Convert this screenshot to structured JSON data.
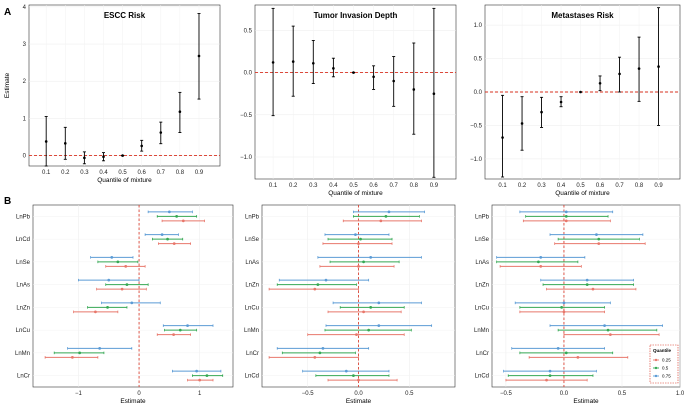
{
  "panel_labels": [
    "A",
    "B"
  ],
  "legend": {
    "title": "Quantile",
    "items": [
      {
        "label": "0.25",
        "color": "#e8776b"
      },
      {
        "label": "0.5",
        "color": "#35a853"
      },
      {
        "label": "0.75",
        "color": "#5b9bd5"
      }
    ]
  },
  "chart_data": [
    {
      "type": "errorbar",
      "title": "ESCC Risk",
      "xlabel": "Quantile of mixture",
      "ylabel": "Estimate",
      "categories": [
        "0.1",
        "0.2",
        "0.3",
        "0.4",
        "0.5",
        "0.6",
        "0.7",
        "0.8",
        "0.9"
      ],
      "estimate": [
        0.38,
        0.33,
        -0.06,
        -0.03,
        0.0,
        0.26,
        0.62,
        1.18,
        2.68
      ],
      "lower": [
        -0.28,
        -0.1,
        -0.22,
        -0.14,
        0.0,
        0.12,
        0.32,
        0.62,
        1.52
      ],
      "upper": [
        1.05,
        0.76,
        0.1,
        0.08,
        0.0,
        0.41,
        0.9,
        1.7,
        3.82
      ],
      "ylim": [
        -0.28,
        4.05
      ],
      "yticks": [
        0,
        1,
        2,
        3,
        4
      ],
      "refline": 0
    },
    {
      "type": "errorbar",
      "title": "Tumor Invasion Depth",
      "xlabel": "Quantile of mixture",
      "ylabel": "",
      "categories": [
        "0.1",
        "0.2",
        "0.3",
        "0.4",
        "0.5",
        "0.6",
        "0.7",
        "0.8",
        "0.9"
      ],
      "estimate": [
        0.12,
        0.13,
        0.11,
        0.05,
        0.0,
        -0.05,
        -0.1,
        -0.2,
        -0.25
      ],
      "lower": [
        -0.51,
        -0.28,
        -0.13,
        -0.05,
        0.0,
        -0.2,
        -0.4,
        -0.73,
        -1.24
      ],
      "upper": [
        0.76,
        0.55,
        0.38,
        0.17,
        0.0,
        0.08,
        0.19,
        0.35,
        0.76
      ],
      "ylim": [
        -1.26,
        0.8
      ],
      "yticks": [
        -1.0,
        -0.5,
        0.0,
        0.5
      ],
      "refline": 0
    },
    {
      "type": "errorbar",
      "title": "Metastases Risk",
      "xlabel": "Quantile of mixture",
      "ylabel": "",
      "categories": [
        "0.1",
        "0.2",
        "0.3",
        "0.4",
        "0.5",
        "0.6",
        "0.7",
        "0.8",
        "0.9"
      ],
      "estimate": [
        -0.68,
        -0.47,
        -0.3,
        -0.15,
        0.0,
        0.13,
        0.27,
        0.35,
        0.38
      ],
      "lower": [
        -1.27,
        -0.87,
        -0.53,
        -0.22,
        0.0,
        0.02,
        0.0,
        -0.14,
        -0.5
      ],
      "upper": [
        -0.05,
        -0.07,
        -0.08,
        -0.07,
        0.0,
        0.24,
        0.52,
        0.82,
        1.26
      ],
      "ylim": [
        -1.3,
        1.3
      ],
      "yticks": [
        -1.0,
        -0.5,
        0.0,
        0.5,
        1.0
      ],
      "refline": 0
    },
    {
      "type": "forest",
      "title": "",
      "xlabel": "Estimate",
      "ylabel": "",
      "rows": [
        "LnPb",
        "LnCd",
        "LnSe",
        "LnAs",
        "LnZn",
        "LnCu",
        "LnMn",
        "LnCr"
      ],
      "quantiles": [
        "0.25",
        "0.5",
        "0.75"
      ],
      "series": [
        {
          "name": "0.25",
          "estimate": [
            0.73,
            0.58,
            -0.22,
            -0.28,
            -0.72,
            0.57,
            -1.1,
            1.0
          ],
          "lower": [
            0.38,
            0.32,
            -0.55,
            -0.7,
            -1.08,
            0.3,
            -1.55,
            0.8
          ],
          "upper": [
            1.08,
            0.85,
            0.1,
            0.12,
            -0.35,
            0.85,
            -0.68,
            1.22
          ]
        },
        {
          "name": "0.5",
          "estimate": [
            0.62,
            0.47,
            -0.35,
            -0.2,
            -0.52,
            0.68,
            -0.98,
            1.12
          ],
          "lower": [
            0.3,
            0.22,
            -0.68,
            -0.55,
            -0.85,
            0.42,
            -1.4,
            0.88
          ],
          "upper": [
            0.95,
            0.72,
            -0.02,
            0.15,
            -0.2,
            0.95,
            -0.58,
            1.38
          ]
        },
        {
          "name": "0.75",
          "estimate": [
            0.5,
            0.38,
            -0.45,
            -0.5,
            -0.12,
            0.8,
            -0.65,
            0.95
          ],
          "lower": [
            0.15,
            0.1,
            -0.8,
            -1.0,
            -0.62,
            0.4,
            -1.18,
            0.55
          ],
          "upper": [
            0.88,
            0.65,
            -0.1,
            0.0,
            0.35,
            1.22,
            -0.12,
            1.35
          ]
        }
      ],
      "xlim": [
        -1.75,
        1.55
      ],
      "xticks": [
        -1,
        0,
        1
      ],
      "refline": 0
    },
    {
      "type": "forest",
      "title": "",
      "xlabel": "Estimate",
      "ylabel": "",
      "rows": [
        "LnPb",
        "LnSe",
        "LnAs",
        "LnZn",
        "LnCu",
        "LnMn",
        "LnCr",
        "LnCd"
      ],
      "quantiles": [
        "0.25",
        "0.5",
        "0.75"
      ],
      "series": [
        {
          "name": "0.25",
          "estimate": [
            0.22,
            0.0,
            0.0,
            -0.43,
            0.05,
            -0.02,
            -0.43,
            0.0
          ],
          "lower": [
            -0.15,
            -0.35,
            -0.38,
            -0.88,
            -0.3,
            -0.5,
            -0.88,
            -0.3
          ],
          "upper": [
            0.62,
            0.33,
            0.35,
            0.0,
            0.42,
            0.45,
            0.0,
            0.38
          ]
        },
        {
          "name": "0.5",
          "estimate": [
            0.27,
            0.02,
            0.05,
            -0.4,
            0.12,
            0.1,
            -0.38,
            -0.05
          ],
          "lower": [
            -0.05,
            -0.3,
            -0.28,
            -0.8,
            -0.18,
            -0.33,
            -0.75,
            -0.42
          ],
          "upper": [
            0.6,
            0.33,
            0.4,
            -0.02,
            0.45,
            0.52,
            -0.03,
            0.3
          ]
        },
        {
          "name": "0.75",
          "estimate": [
            0.3,
            -0.03,
            0.12,
            -0.32,
            0.2,
            0.2,
            -0.35,
            -0.12
          ],
          "lower": [
            -0.05,
            -0.33,
            -0.4,
            -0.78,
            -0.25,
            -0.32,
            -0.8,
            -0.55
          ],
          "upper": [
            0.65,
            0.3,
            0.62,
            0.1,
            0.62,
            0.72,
            0.1,
            0.3
          ]
        }
      ],
      "xlim": [
        -0.95,
        0.95
      ],
      "xticks": [
        -0.5,
        0.0,
        0.5
      ],
      "refline": 0
    },
    {
      "type": "forest",
      "title": "",
      "xlabel": "Estimate",
      "ylabel": "",
      "rows": [
        "LnPb",
        "LnSe",
        "LnAs",
        "LnZn",
        "LnCu",
        "LnMn",
        "LnCr",
        "LnCd"
      ],
      "quantiles": [
        "0.25",
        "0.5",
        "0.75"
      ],
      "series": [
        {
          "name": "0.25",
          "estimate": [
            0.02,
            0.3,
            -0.2,
            0.25,
            0.0,
            0.4,
            0.12,
            -0.15
          ],
          "lower": [
            -0.35,
            -0.08,
            -0.55,
            -0.15,
            -0.38,
            0.0,
            -0.3,
            -0.5
          ],
          "upper": [
            0.4,
            0.7,
            0.15,
            0.62,
            0.35,
            0.82,
            0.55,
            0.2
          ]
        },
        {
          "name": "0.5",
          "estimate": [
            0.02,
            0.3,
            -0.22,
            0.2,
            -0.02,
            0.38,
            0.02,
            -0.12
          ],
          "lower": [
            -0.33,
            -0.05,
            -0.58,
            -0.18,
            -0.38,
            -0.05,
            -0.38,
            -0.48
          ],
          "upper": [
            0.38,
            0.65,
            0.12,
            0.6,
            0.35,
            0.8,
            0.42,
            0.25
          ]
        },
        {
          "name": "0.75",
          "estimate": [
            0.02,
            0.28,
            -0.2,
            0.2,
            0.0,
            0.35,
            -0.05,
            -0.12
          ],
          "lower": [
            -0.38,
            -0.12,
            -0.58,
            -0.2,
            -0.42,
            -0.12,
            -0.45,
            -0.52
          ],
          "upper": [
            0.42,
            0.68,
            0.18,
            0.6,
            0.4,
            0.85,
            0.35,
            0.28
          ]
        }
      ],
      "xlim": [
        -0.62,
        1.0
      ],
      "xticks": [
        -0.5,
        0.0,
        0.5,
        1.0
      ],
      "refline": 0
    }
  ]
}
